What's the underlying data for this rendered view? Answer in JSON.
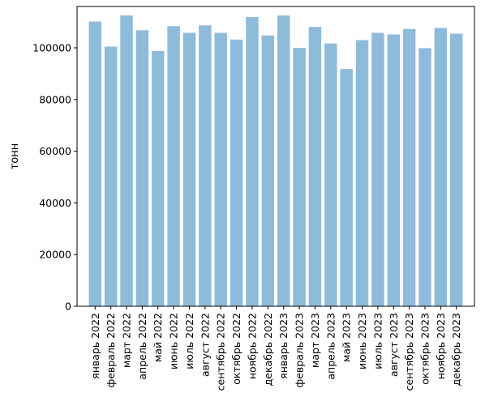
{
  "chart_data": {
    "type": "bar",
    "title": "",
    "xlabel": "",
    "ylabel": "тонн",
    "ylim": [
      0,
      116000
    ],
    "yticks": [
      0,
      20000,
      40000,
      60000,
      80000,
      100000
    ],
    "grid": false,
    "bar_color": "#8fbbdb",
    "categories": [
      "январь 2022",
      "февраль 2022",
      "март 2022",
      "апрель 2022",
      "май 2022",
      "июнь 2022",
      "июль 2022",
      "август 2022",
      "сентябрь 2022",
      "октябрь 2022",
      "ноябрь 2022",
      "декабрь 2022",
      "январь 2023",
      "февраль 2023",
      "март 2023",
      "апрель 2023",
      "май 2023",
      "июнь 2023",
      "июль 2023",
      "август 2023",
      "сентябрь 2023",
      "октябрь 2023",
      "ноябрь 2023",
      "декабрь 2023"
    ],
    "values": [
      110200,
      100500,
      112500,
      106800,
      98800,
      108400,
      105800,
      108700,
      105800,
      103200,
      111900,
      104800,
      112500,
      100000,
      108100,
      101700,
      91800,
      103000,
      105800,
      105200,
      107300,
      99900,
      107700,
      105500
    ]
  }
}
